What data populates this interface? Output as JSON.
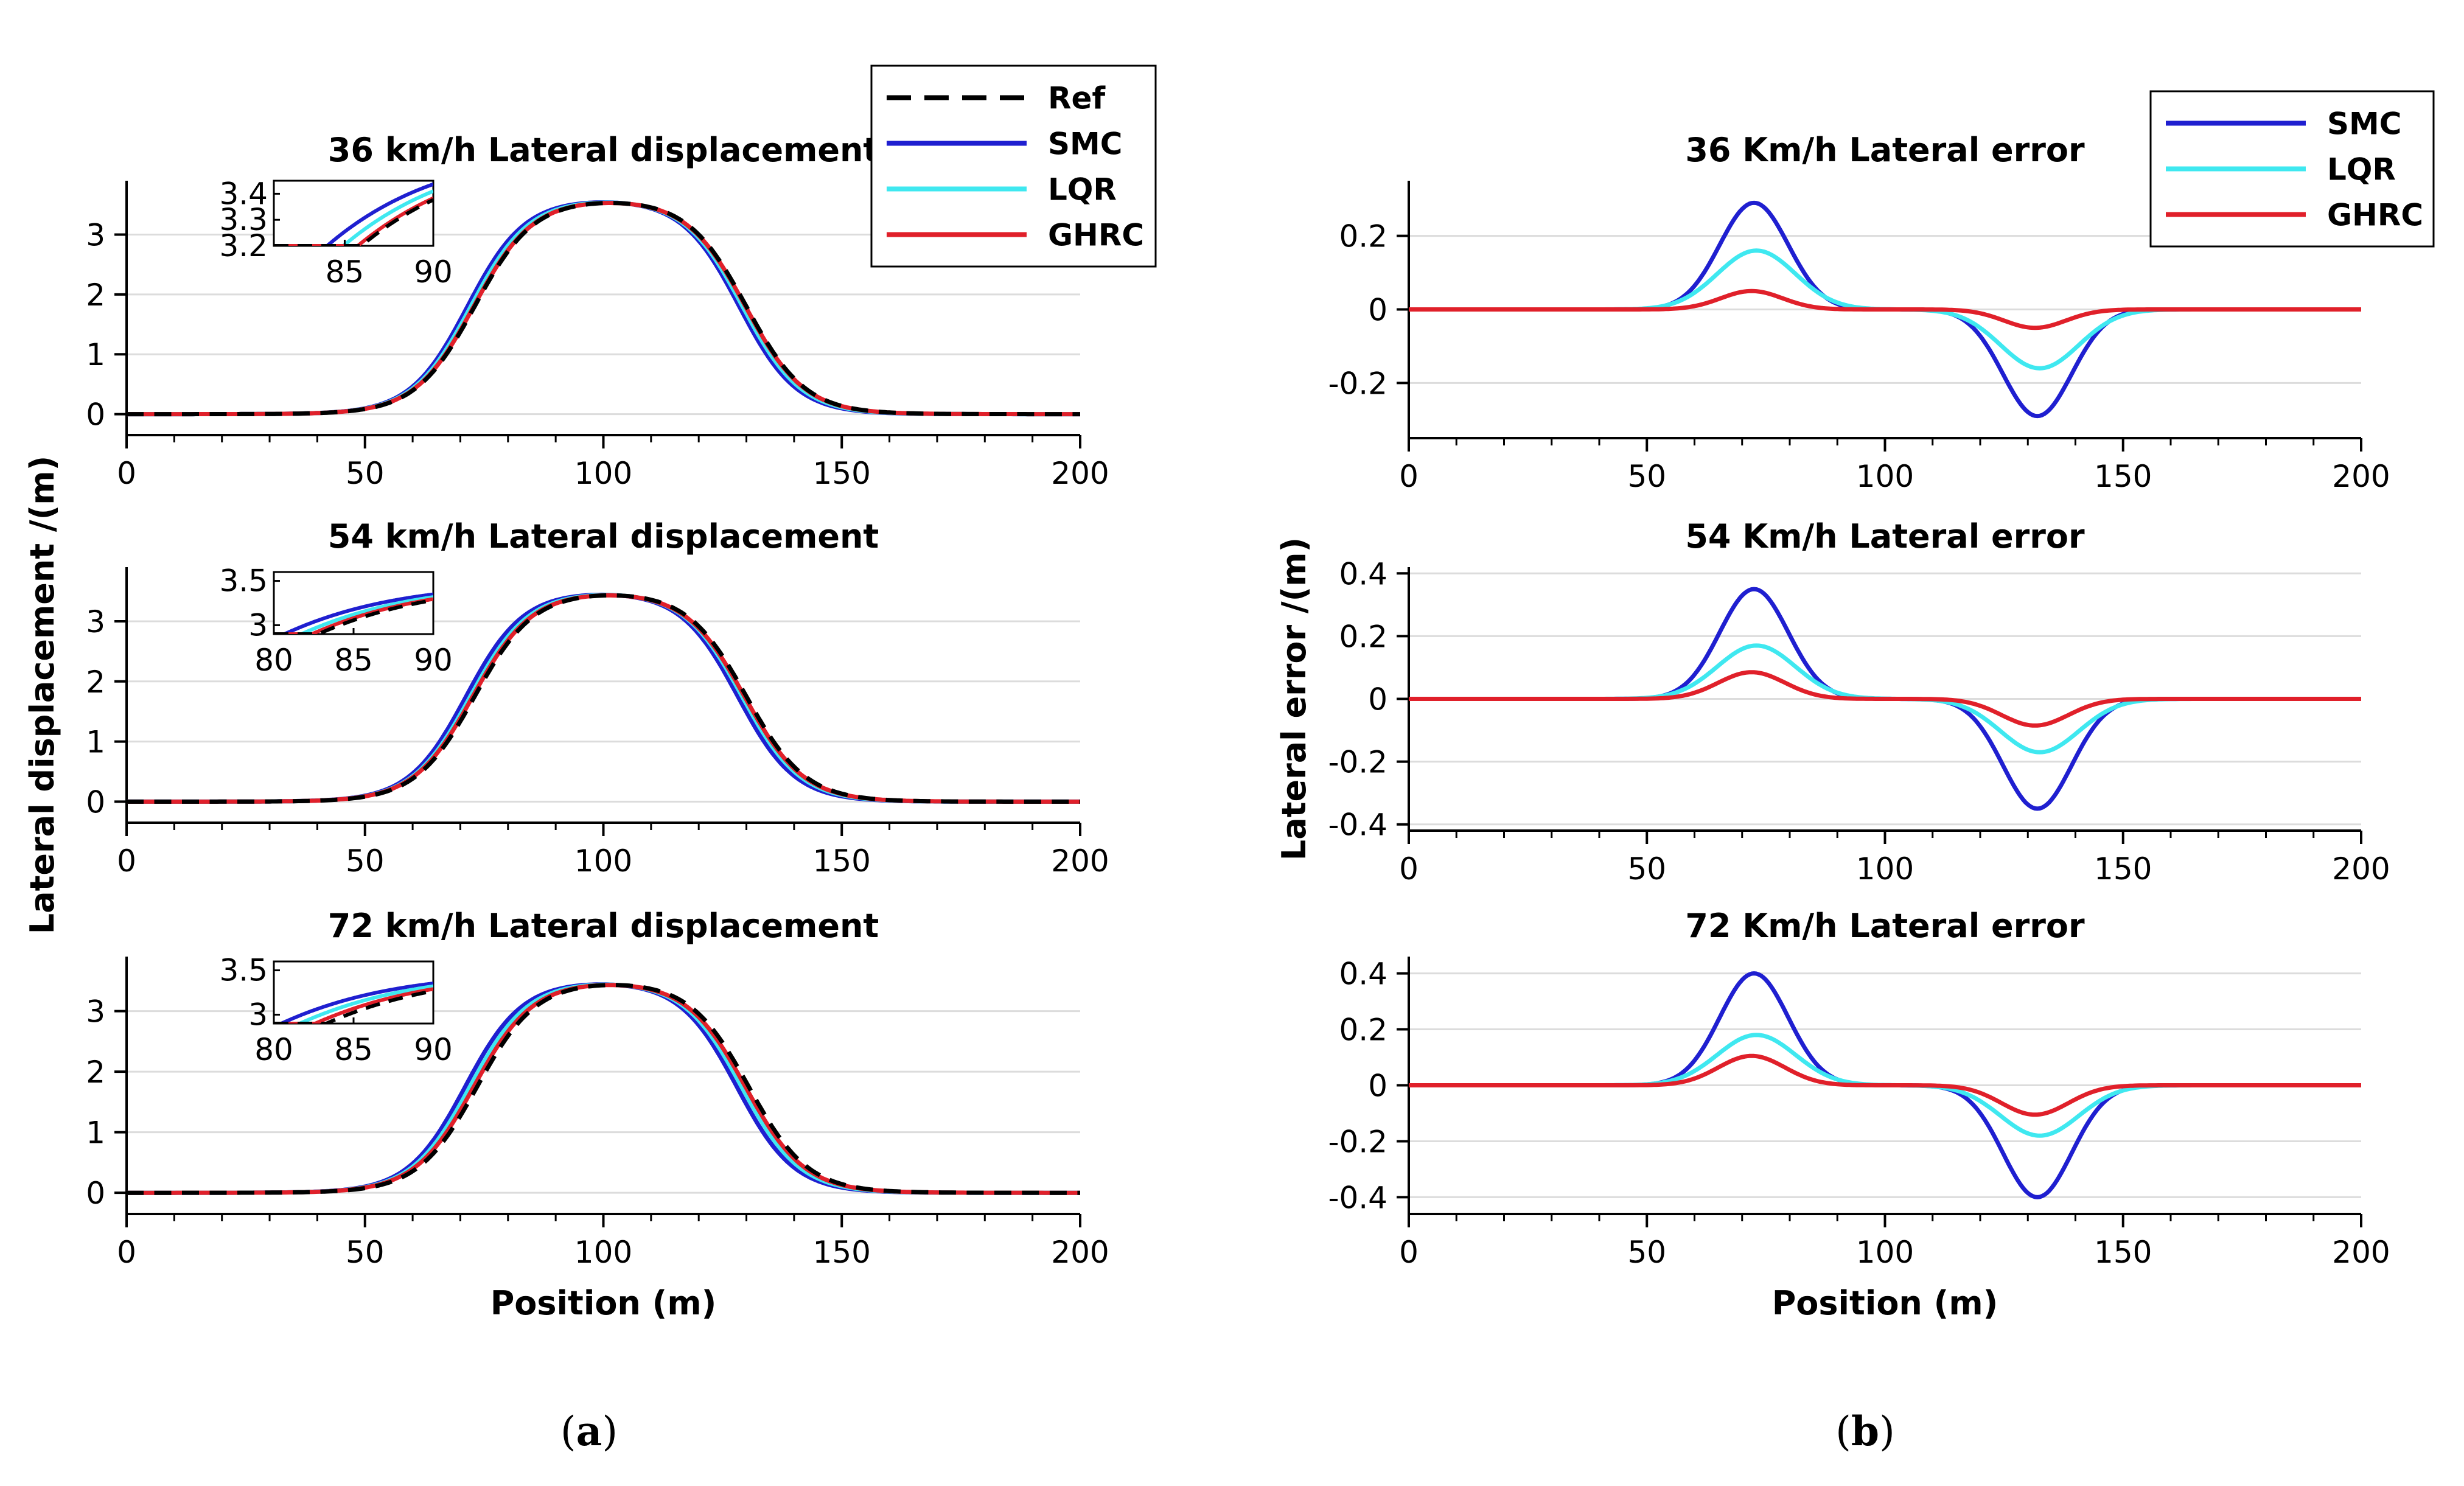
{
  "figure_captions": {
    "a_open": "(",
    "a_letter": "a",
    "a_close": ")",
    "b_open": "(",
    "b_letter": "b",
    "b_close": ")"
  },
  "colors": {
    "Ref": "#000000",
    "SMC": "#1f1fd0",
    "LQR": "#3fe8f0",
    "GHRC": "#e0202a",
    "grid": "#dcdcdc"
  },
  "chart_data": [
    {
      "id": "a1",
      "type": "line",
      "title": "36 km/h Lateral displacement",
      "xlabel": "",
      "ylabel": "",
      "xlim": [
        0,
        200
      ],
      "ylim": [
        -0.35,
        3.9
      ],
      "xticks": [
        0,
        50,
        100,
        150,
        200
      ],
      "yticks": [
        0,
        1,
        2,
        3
      ],
      "series": [
        {
          "name": "Ref",
          "dashed": true,
          "type": "plateau",
          "value": 3.6,
          "rise_center": 73,
          "rise_width": 6.2,
          "fall_center": 130,
          "fall_width": 6.2
        },
        {
          "name": "SMC",
          "type": "plateau",
          "value": 3.6,
          "rise_center": 71.5,
          "rise_width": 6.0,
          "fall_center": 128.5,
          "fall_width": 6.0
        },
        {
          "name": "LQR",
          "type": "plateau",
          "value": 3.6,
          "rise_center": 72.2,
          "rise_width": 6.1,
          "fall_center": 129.2,
          "fall_width": 6.1
        },
        {
          "name": "GHRC",
          "type": "plateau",
          "value": 3.6,
          "rise_center": 72.8,
          "rise_width": 6.2,
          "fall_center": 129.8,
          "fall_width": 6.2
        }
      ],
      "inset": {
        "xlim": [
          81,
          90
        ],
        "ylim": [
          3.2,
          3.45
        ],
        "xticks": [
          85,
          90
        ],
        "yticks": [
          3.2,
          3.3,
          3.4
        ]
      },
      "legend": {
        "position": "top-right",
        "entries": [
          "Ref",
          "SMC",
          "LQR",
          "GHRC"
        ]
      }
    },
    {
      "id": "a2",
      "type": "line",
      "title": "54 km/h Lateral displacement",
      "xlabel": "",
      "ylabel": "Lateral displacement /(m)",
      "xlim": [
        0,
        200
      ],
      "ylim": [
        -0.35,
        3.9
      ],
      "xticks": [
        0,
        50,
        100,
        150,
        200
      ],
      "yticks": [
        0,
        1,
        2,
        3
      ],
      "series": [
        {
          "name": "Ref",
          "dashed": true,
          "type": "plateau",
          "value": 3.5,
          "rise_center": 73,
          "rise_width": 6.2,
          "fall_center": 130,
          "fall_width": 6.2
        },
        {
          "name": "SMC",
          "type": "plateau",
          "value": 3.5,
          "rise_center": 71.2,
          "rise_width": 6.0,
          "fall_center": 128.2,
          "fall_width": 6.0
        },
        {
          "name": "LQR",
          "type": "plateau",
          "value": 3.5,
          "rise_center": 72.1,
          "rise_width": 6.1,
          "fall_center": 129.1,
          "fall_width": 6.1
        },
        {
          "name": "GHRC",
          "type": "plateau",
          "value": 3.5,
          "rise_center": 72.6,
          "rise_width": 6.2,
          "fall_center": 129.6,
          "fall_width": 6.2
        }
      ],
      "inset": {
        "xlim": [
          80,
          90
        ],
        "ylim": [
          2.9,
          3.6
        ],
        "xticks": [
          80,
          85,
          90
        ],
        "yticks": [
          3,
          3.5
        ]
      }
    },
    {
      "id": "a3",
      "type": "line",
      "title": "72 km/h Lateral displacement",
      "xlabel": "Position (m)",
      "ylabel": "",
      "xlim": [
        0,
        200
      ],
      "ylim": [
        -0.35,
        3.9
      ],
      "xticks": [
        0,
        50,
        100,
        150,
        200
      ],
      "yticks": [
        0,
        1,
        2,
        3
      ],
      "series": [
        {
          "name": "Ref",
          "dashed": true,
          "type": "plateau",
          "value": 3.5,
          "rise_center": 73.5,
          "rise_width": 6.2,
          "fall_center": 130.5,
          "fall_width": 6.2
        },
        {
          "name": "SMC",
          "type": "plateau",
          "value": 3.5,
          "rise_center": 71.0,
          "rise_width": 6.0,
          "fall_center": 128.0,
          "fall_width": 6.0
        },
        {
          "name": "LQR",
          "type": "plateau",
          "value": 3.5,
          "rise_center": 72.0,
          "rise_width": 6.1,
          "fall_center": 129.0,
          "fall_width": 6.1
        },
        {
          "name": "GHRC",
          "type": "plateau",
          "value": 3.5,
          "rise_center": 72.8,
          "rise_width": 6.2,
          "fall_center": 129.8,
          "fall_width": 6.2
        }
      ],
      "inset": {
        "xlim": [
          80,
          90
        ],
        "ylim": [
          2.9,
          3.6
        ],
        "xticks": [
          80,
          85,
          90
        ],
        "yticks": [
          3,
          3.5
        ]
      }
    },
    {
      "id": "b1",
      "type": "line",
      "title": "36 Km/h Lateral error",
      "xlabel": "",
      "ylabel": "",
      "xlim": [
        0,
        200
      ],
      "ylim": [
        -0.35,
        0.35
      ],
      "xticks": [
        0,
        50,
        100,
        150,
        200
      ],
      "yticks": [
        -0.2,
        0,
        0.2
      ],
      "ytick_labels": [
        "-0.2",
        "0",
        "0.2"
      ],
      "series": [
        {
          "name": "SMC",
          "type": "bump",
          "amplitude": 0.29,
          "pos_center": 72.5,
          "neg_center": 132,
          "sigma": 7.2
        },
        {
          "name": "LQR",
          "type": "bump",
          "amplitude": 0.16,
          "pos_center": 73,
          "neg_center": 132.5,
          "sigma": 8.2
        },
        {
          "name": "GHRC",
          "type": "bump",
          "amplitude": 0.05,
          "pos_center": 72,
          "neg_center": 131.5,
          "sigma": 6.5
        }
      ],
      "legend": {
        "position": "top-right",
        "entries": [
          "SMC",
          "LQR",
          "GHRC"
        ]
      }
    },
    {
      "id": "b2",
      "type": "line",
      "title": "54 Km/h Lateral error",
      "xlabel": "",
      "ylabel": "Lateral error /(m)",
      "xlim": [
        0,
        200
      ],
      "ylim": [
        -0.42,
        0.42
      ],
      "xticks": [
        0,
        50,
        100,
        150,
        200
      ],
      "yticks": [
        -0.4,
        -0.2,
        0,
        0.2,
        0.4
      ],
      "ytick_labels": [
        "-0.4",
        "-0.2",
        "0",
        "0.2",
        "0.4"
      ],
      "series": [
        {
          "name": "SMC",
          "type": "bump",
          "amplitude": 0.35,
          "pos_center": 72.5,
          "neg_center": 132,
          "sigma": 7.2
        },
        {
          "name": "LQR",
          "type": "bump",
          "amplitude": 0.17,
          "pos_center": 73,
          "neg_center": 132.5,
          "sigma": 8.2
        },
        {
          "name": "GHRC",
          "type": "bump",
          "amplitude": 0.085,
          "pos_center": 72,
          "neg_center": 131.5,
          "sigma": 7.0
        }
      ]
    },
    {
      "id": "b3",
      "type": "line",
      "title": "72 Km/h Lateral error",
      "xlabel": "Position (m)",
      "ylabel": "",
      "xlim": [
        0,
        200
      ],
      "ylim": [
        -0.46,
        0.46
      ],
      "xticks": [
        0,
        50,
        100,
        150,
        200
      ],
      "yticks": [
        -0.4,
        -0.2,
        0,
        0.2,
        0.4
      ],
      "ytick_labels": [
        "-0.4",
        "-0.2",
        "0",
        "0.2",
        "0.4"
      ],
      "series": [
        {
          "name": "SMC",
          "type": "bump",
          "amplitude": 0.4,
          "pos_center": 72.5,
          "neg_center": 132,
          "sigma": 7.2
        },
        {
          "name": "LQR",
          "type": "bump",
          "amplitude": 0.18,
          "pos_center": 73,
          "neg_center": 132.5,
          "sigma": 8.2
        },
        {
          "name": "GHRC",
          "type": "bump",
          "amplitude": 0.105,
          "pos_center": 72,
          "neg_center": 131.5,
          "sigma": 7.0
        }
      ]
    }
  ]
}
